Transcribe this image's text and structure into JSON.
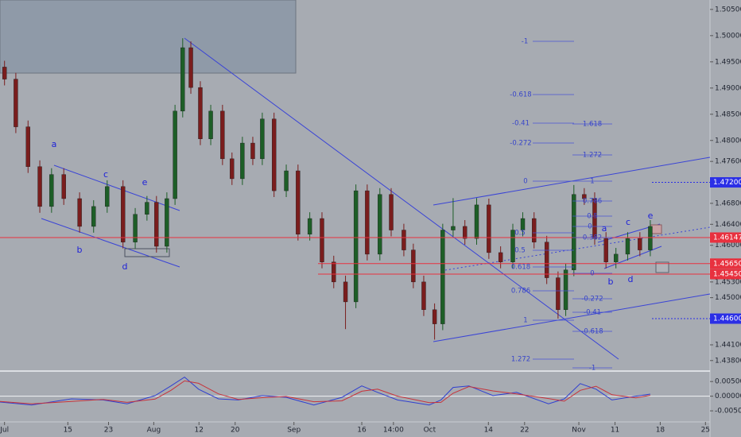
{
  "chart_data": {
    "type": "candlestick",
    "x": [
      0,
      2.5,
      5.2,
      7.8,
      10.4,
      13.1,
      16.6,
      19.7,
      22.7,
      26.2,
      28.9,
      31.5,
      33.6,
      35.9,
      37.7,
      39.4,
      41.2,
      43.3,
      45.6,
      48.2,
      50.3,
      52.6,
      54.9,
      57.0,
      59.6,
      62.3,
      64.9,
      67.5,
      70.2,
      72.8,
      75.4,
      77.7,
      80.2,
      83.0,
      85.5,
      88.3,
      90.4,
      92.7,
      95.1,
      96.9,
      99.2,
      101.8,
      104.4,
      107.1,
      109.7,
      112.4,
      114.6,
      117.1,
      119.9,
      122.4,
      124.1,
      125.9,
      128.2,
      130.5,
      133.0,
      135.2,
      137.8,
      140.5,
      142.8
    ],
    "open": [
      1.494,
      1.4917,
      1.4826,
      1.475,
      1.4674,
      1.4735,
      1.4689,
      1.4636,
      1.4674,
      1.4712,
      1.4606,
      1.4659,
      1.4682,
      1.4598,
      1.4689,
      1.4856,
      1.4977,
      1.4901,
      1.4803,
      1.4856,
      1.4765,
      1.4727,
      1.4795,
      1.4765,
      1.4841,
      1.4704,
      1.4742,
      1.4621,
      1.4651,
      1.4568,
      1.453,
      1.4492,
      1.4704,
      1.4583,
      1.4697,
      1.4629,
      1.4591,
      1.453,
      1.4477,
      1.445,
      1.4629,
      1.4636,
      1.4613,
      1.4677,
      1.4586,
      1.4568,
      1.4629,
      1.4651,
      1.4606,
      1.4538,
      1.4477,
      1.4553,
      1.4697,
      1.4689,
      1.4613,
      1.4568,
      1.4583,
      1.4613,
      1.4591
    ],
    "high": [
      1.4952,
      1.4929,
      1.4838,
      1.4762,
      1.4747,
      1.4747,
      1.4701,
      1.4686,
      1.4724,
      1.4724,
      1.4671,
      1.4694,
      1.4694,
      1.4701,
      1.4868,
      1.4995,
      1.4989,
      1.4913,
      1.4868,
      1.4868,
      1.4777,
      1.4807,
      1.4807,
      1.4853,
      1.4853,
      1.4754,
      1.4754,
      1.4663,
      1.4663,
      1.458,
      1.4542,
      1.4716,
      1.4716,
      1.4709,
      1.4709,
      1.4641,
      1.4603,
      1.4542,
      1.4489,
      1.4641,
      1.469,
      1.4648,
      1.469,
      1.4689,
      1.4598,
      1.4641,
      1.4663,
      1.4663,
      1.4618,
      1.455,
      1.4565,
      1.4715,
      1.4709,
      1.4701,
      1.4625,
      1.4595,
      1.4625,
      1.4625,
      1.4648
    ],
    "low": [
      1.4905,
      1.4814,
      1.4738,
      1.4662,
      1.4662,
      1.4677,
      1.4624,
      1.4624,
      1.4662,
      1.4594,
      1.4594,
      1.4647,
      1.4586,
      1.4586,
      1.4677,
      1.4844,
      1.4889,
      1.4791,
      1.4791,
      1.4753,
      1.4715,
      1.4715,
      1.4753,
      1.4753,
      1.4692,
      1.4692,
      1.4609,
      1.4609,
      1.4556,
      1.4518,
      1.444,
      1.448,
      1.4571,
      1.4571,
      1.4617,
      1.4579,
      1.4518,
      1.4465,
      1.442,
      1.4438,
      1.4617,
      1.4601,
      1.4601,
      1.4574,
      1.4556,
      1.4556,
      1.4617,
      1.4594,
      1.4526,
      1.446,
      1.4465,
      1.4541,
      1.4677,
      1.4601,
      1.4556,
      1.4556,
      1.4571,
      1.4579,
      1.4579
    ],
    "close": [
      1.4917,
      1.4826,
      1.475,
      1.4674,
      1.4735,
      1.4689,
      1.4636,
      1.4674,
      1.4712,
      1.4606,
      1.4659,
      1.4682,
      1.4598,
      1.4689,
      1.4856,
      1.4977,
      1.4901,
      1.4803,
      1.4856,
      1.4765,
      1.4727,
      1.4795,
      1.4765,
      1.4841,
      1.4704,
      1.4742,
      1.4621,
      1.4651,
      1.4568,
      1.453,
      1.4492,
      1.4704,
      1.4583,
      1.4697,
      1.4629,
      1.4591,
      1.453,
      1.4477,
      1.445,
      1.4629,
      1.4636,
      1.4613,
      1.4677,
      1.4586,
      1.4568,
      1.4629,
      1.4651,
      1.4606,
      1.4538,
      1.4477,
      1.4553,
      1.4697,
      1.4689,
      1.4613,
      1.4568,
      1.4583,
      1.4613,
      1.4591,
      1.4636
    ],
    "up_color": "#1d5e27",
    "down_color": "#7a1d1d",
    "xlim": [
      -1,
      156
    ],
    "ylim": [
      1.4363,
      1.5068
    ],
    "xticks": [
      {
        "value": 0,
        "label": "Jul"
      },
      {
        "value": 14,
        "label": "15"
      },
      {
        "value": 23,
        "label": "23"
      },
      {
        "value": 33,
        "label": "Aug"
      },
      {
        "value": 43,
        "label": "12"
      },
      {
        "value": 51,
        "label": "20"
      },
      {
        "value": 64,
        "label": "Sep"
      },
      {
        "value": 79,
        "label": "16"
      },
      {
        "value": 86,
        "label": "14:00"
      },
      {
        "value": 94,
        "label": "Oct"
      },
      {
        "value": 107,
        "label": "14"
      },
      {
        "value": 115,
        "label": "22"
      },
      {
        "value": 127,
        "label": "Nov"
      },
      {
        "value": 135,
        "label": "11"
      },
      {
        "value": 145,
        "label": "18"
      },
      {
        "value": 155,
        "label": "25"
      }
    ],
    "yticks": [
      {
        "value": 1.505,
        "label": "1.50500"
      },
      {
        "value": 1.5,
        "label": "1.50000"
      },
      {
        "value": 1.495,
        "label": "1.49500"
      },
      {
        "value": 1.49,
        "label": "1.49000"
      },
      {
        "value": 1.485,
        "label": "1.48500"
      },
      {
        "value": 1.48,
        "label": "1.48000"
      },
      {
        "value": 1.476,
        "label": "1.47600"
      },
      {
        "value": 1.468,
        "label": "1.46800"
      },
      {
        "value": 1.464,
        "label": "1.46400"
      },
      {
        "value": 1.46,
        "label": "1.46000"
      },
      {
        "value": 1.453,
        "label": "1.45300"
      },
      {
        "value": 1.45,
        "label": "1.45000"
      },
      {
        "value": 1.441,
        "label": "1.44100"
      },
      {
        "value": 1.438,
        "label": "1.43800"
      }
    ],
    "price_tags": [
      {
        "value": 1.472,
        "label": "1.47200",
        "color": "#2b2fe6"
      },
      {
        "value": 1.46147,
        "label": "1.46147",
        "color": "#e8313f"
      },
      {
        "value": 1.4565,
        "label": "1.45650",
        "color": "#e8313f"
      },
      {
        "value": 1.4545,
        "label": "1.45450",
        "color": "#e8313f"
      },
      {
        "value": 1.446,
        "label": "1.44600",
        "color": "#2b2fe6"
      }
    ],
    "wave_labels": [
      "a",
      "b",
      "c",
      "d",
      "e",
      "a",
      "b",
      "c",
      "d",
      "e"
    ],
    "fib_labels": [
      "-1",
      "-0.618",
      "-0.41",
      "-0.272",
      "0",
      "0.5",
      "0.5",
      "0.618",
      "0.786",
      "1",
      "1.272",
      "1.618",
      "1.272",
      "1",
      "0.786",
      "0.5",
      "0",
      "0.382",
      "0",
      "-0.272",
      "-0.41",
      "-0.618",
      "-1"
    ],
    "oscillator": {
      "x": [
        -1.0,
        6.0,
        14.8,
        21.8,
        27.1,
        33.3,
        36.8,
        39.8,
        42.9,
        47.3,
        51.7,
        57.0,
        62.3,
        68.4,
        74.6,
        79.0,
        82.5,
        86.9,
        93.9,
        96.5,
        99.2,
        102.7,
        108.0,
        113.2,
        120.3,
        123.8,
        127.3,
        130.8,
        134.3,
        139.6,
        142.8
      ],
      "series": [
        {
          "color": "#2f3fd0",
          "values": [
            -0.002,
            -0.003,
            -0.0009,
            -0.0013,
            -0.0026,
            0.0002,
            0.0035,
            0.0065,
            0.0024,
            -0.0009,
            -0.0013,
            0.0002,
            -0.0004,
            -0.003,
            -0.0004,
            0.0035,
            0.0013,
            -0.0013,
            -0.003,
            -0.0013,
            0.003,
            0.0035,
            0.0002,
            0.0013,
            -0.0026,
            -0.0009,
            0.0043,
            0.0024,
            -0.0013,
            0.0,
            0.0007
          ]
        },
        {
          "color": "#c7323a",
          "values": [
            -0.0018,
            -0.0026,
            -0.0018,
            -0.0011,
            -0.0021,
            -0.001,
            0.002,
            0.0052,
            0.0044,
            0.0008,
            -0.0011,
            -0.0005,
            -0.0001,
            -0.0019,
            -0.0016,
            0.0017,
            0.0024,
            0.0,
            -0.0022,
            -0.0021,
            0.001,
            0.0033,
            0.0018,
            0.0008,
            -0.0008,
            -0.0017,
            0.002,
            0.0034,
            0.0005,
            -0.0006,
            0.0003
          ]
        }
      ],
      "ylim": [
        -0.0085,
        0.0083
      ],
      "yticks": [
        {
          "value": 0.005,
          "label": "0.00500"
        },
        {
          "value": 0,
          "label": "0.00000"
        },
        {
          "value": -0.005,
          "label": "-0.00500"
        }
      ]
    }
  }
}
